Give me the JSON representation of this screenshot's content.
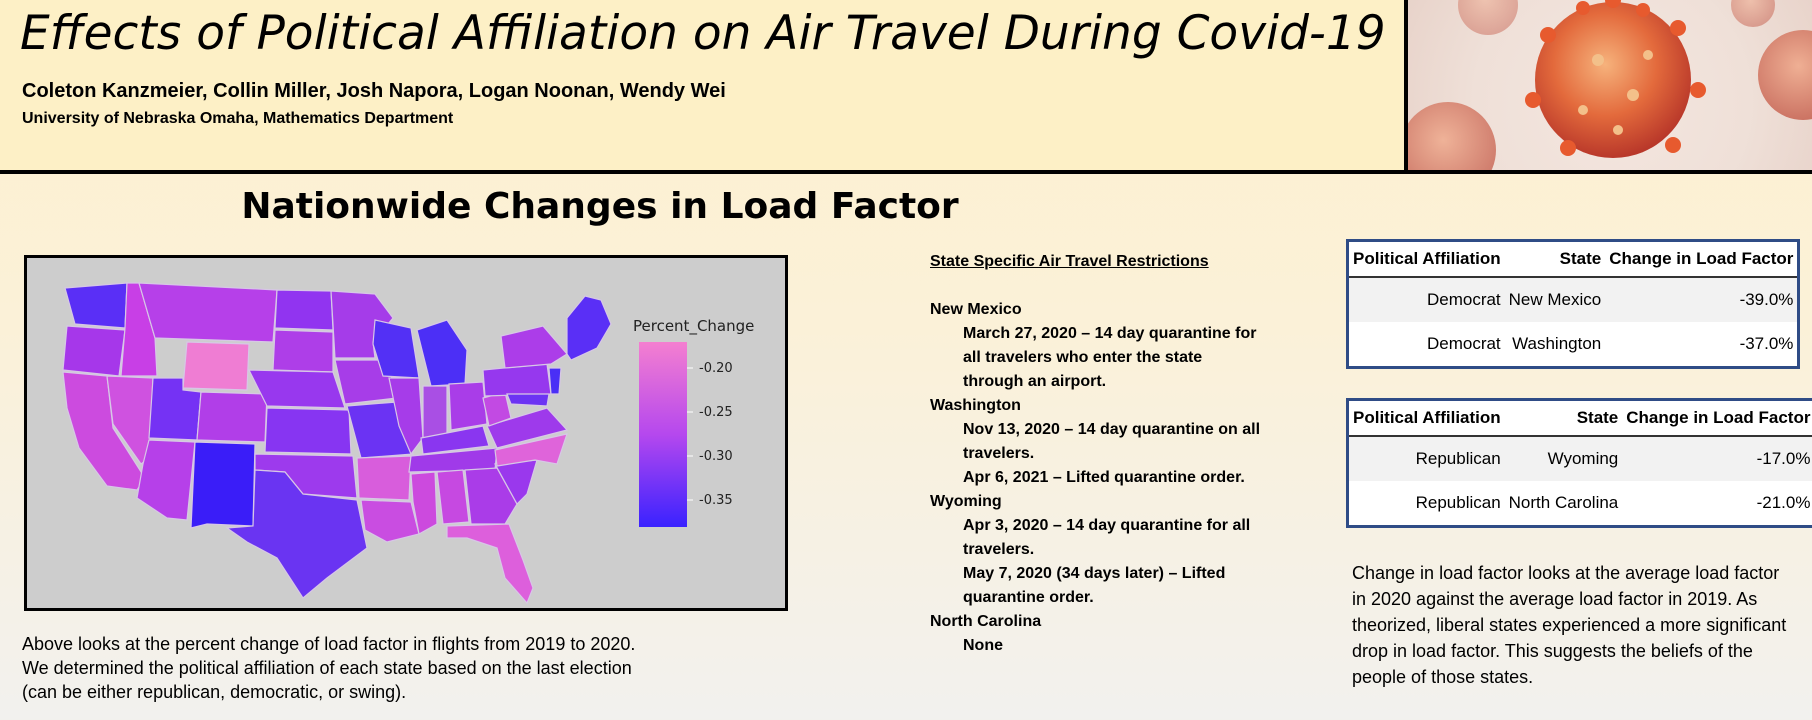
{
  "header": {
    "title": "Effects of Political Affiliation on Air Travel During Covid-19",
    "authors": "Coleton Kanzmeier, Collin Miller, Josh Napora, Logan Noonan, Wendy Wei",
    "affiliation": "University of Nebraska Omaha, Mathematics Department"
  },
  "section_title": "Nationwide Changes in Load Factor",
  "map": {
    "legend_title": "Percent_Change",
    "legend_ticks": [
      "-0.20",
      "-0.25",
      "-0.30",
      "-0.35"
    ],
    "colors": {
      "high": "#f07ad2",
      "mid": "#b13cf0",
      "low": "#3a22ff"
    },
    "caption": "Above looks at the percent change of load factor in flights from 2019 to 2020. We determined the political affiliation of each state based on the last election (can be either republican, democratic, or swing)."
  },
  "restrictions": {
    "heading": "State Specific Air Travel Restrictions",
    "states": [
      {
        "name": "New Mexico",
        "items": [
          "March 27, 2020 – 14 day quarantine for all travelers who enter the state through an airport."
        ]
      },
      {
        "name": "Washington",
        "items": [
          "Nov 13, 2020 – 14 day quarantine on all travelers.",
          "Apr 6, 2021 – Lifted quarantine order."
        ]
      },
      {
        "name": "Wyoming",
        "items": [
          "Apr 3, 2020 – 14 day quarantine for all travelers.",
          "May 7, 2020 (34 days later) – Lifted quarantine order."
        ]
      },
      {
        "name": "North Carolina",
        "items": [
          "None"
        ]
      }
    ]
  },
  "tables": [
    {
      "headers": [
        "Political Affiliation",
        "State",
        "Change in Load Factor"
      ],
      "rows": [
        [
          "Democrat",
          "New Mexico",
          "-39.0%"
        ],
        [
          "Democrat",
          "Washington",
          "-37.0%"
        ]
      ]
    },
    {
      "headers": [
        "Political Affiliation",
        "State",
        "Change in Load Factor"
      ],
      "rows": [
        [
          "Republican",
          "Wyoming",
          "-17.0%"
        ],
        [
          "Republican",
          "North Carolina",
          "-21.0%"
        ]
      ]
    }
  ],
  "conclusion": "Change in load factor looks at the average load factor in 2020 against the average load factor in 2019. As theorized,  liberal states experienced a more significant drop in load factor. This suggests the beliefs of the people of those states."
}
